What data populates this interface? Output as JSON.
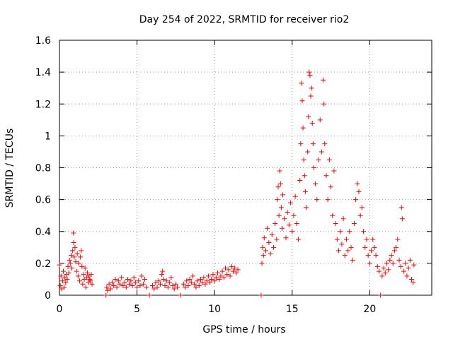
{
  "chart_data": {
    "type": "scatter",
    "title": "Day 254 of 2022, SRMTID for receiver rio2",
    "xlabel": "GPS time / hours",
    "ylabel": "SRMTID / TECUs",
    "xlim": [
      0,
      24
    ],
    "ylim": [
      0,
      1.6
    ],
    "xticks": [
      0,
      5,
      10,
      15,
      20
    ],
    "xtick_labels": [
      "0",
      "5",
      "10",
      "15",
      "20"
    ],
    "yticks": [
      0,
      0.2,
      0.4,
      0.6,
      0.8,
      1,
      1.2,
      1.4,
      1.6
    ],
    "ytick_labels": [
      "0",
      "0.2",
      "0.4",
      "0.6",
      "0.8",
      "1",
      "1.2",
      "1.4",
      "1.6"
    ],
    "grid": true,
    "marker": "+",
    "color": "#ff0000",
    "series": [
      {
        "name": "rio2",
        "points": [
          [
            0.0,
            0.19
          ],
          [
            0.05,
            0.06
          ],
          [
            0.1,
            0.12
          ],
          [
            0.15,
            0.04
          ],
          [
            0.2,
            0.09
          ],
          [
            0.25,
            0.15
          ],
          [
            0.3,
            0.05
          ],
          [
            0.35,
            0.11
          ],
          [
            0.4,
            0.08
          ],
          [
            0.45,
            0.13
          ],
          [
            0.5,
            0.1
          ],
          [
            0.55,
            0.18
          ],
          [
            0.6,
            0.14
          ],
          [
            0.65,
            0.22
          ],
          [
            0.7,
            0.2
          ],
          [
            0.75,
            0.25
          ],
          [
            0.8,
            0.17
          ],
          [
            0.85,
            0.28
          ],
          [
            0.9,
            0.39
          ],
          [
            0.92,
            0.33
          ],
          [
            0.95,
            0.24
          ],
          [
            1.0,
            0.3
          ],
          [
            1.05,
            0.21
          ],
          [
            1.1,
            0.15
          ],
          [
            1.15,
            0.26
          ],
          [
            1.2,
            0.12
          ],
          [
            1.25,
            0.2
          ],
          [
            1.3,
            0.09
          ],
          [
            1.35,
            0.24
          ],
          [
            1.4,
            0.28
          ],
          [
            1.45,
            0.18
          ],
          [
            1.5,
            0.07
          ],
          [
            1.55,
            0.13
          ],
          [
            1.6,
            0.1
          ],
          [
            1.65,
            0.17
          ],
          [
            1.7,
            0.05
          ],
          [
            1.75,
            0.11
          ],
          [
            1.8,
            0.14
          ],
          [
            1.85,
            0.08
          ],
          [
            1.9,
            0.12
          ],
          [
            1.95,
            0.1
          ],
          [
            2.0,
            0.09
          ],
          [
            2.05,
            0.13
          ],
          [
            2.1,
            0.07
          ],
          [
            3.0,
            0.0
          ],
          [
            3.05,
            0.05
          ],
          [
            3.1,
            0.03
          ],
          [
            3.2,
            0.07
          ],
          [
            3.3,
            0.04
          ],
          [
            3.4,
            0.08
          ],
          [
            3.5,
            0.06
          ],
          [
            3.6,
            0.1
          ],
          [
            3.7,
            0.05
          ],
          [
            3.8,
            0.09
          ],
          [
            3.9,
            0.07
          ],
          [
            4.0,
            0.11
          ],
          [
            4.1,
            0.06
          ],
          [
            4.2,
            0.08
          ],
          [
            4.3,
            0.05
          ],
          [
            4.4,
            0.1
          ],
          [
            4.5,
            0.07
          ],
          [
            4.6,
            0.09
          ],
          [
            4.7,
            0.06
          ],
          [
            4.8,
            0.11
          ],
          [
            4.9,
            0.08
          ],
          [
            5.0,
            0.05
          ],
          [
            5.1,
            0.09
          ],
          [
            5.2,
            0.06
          ],
          [
            5.3,
            0.12
          ],
          [
            5.4,
            0.07
          ],
          [
            5.5,
            0.1
          ],
          [
            5.6,
            0.05
          ],
          [
            5.8,
            0.0
          ],
          [
            6.0,
            0.06
          ],
          [
            6.1,
            0.04
          ],
          [
            6.2,
            0.08
          ],
          [
            6.3,
            0.05
          ],
          [
            6.4,
            0.09
          ],
          [
            6.5,
            0.07
          ],
          [
            6.6,
            0.13
          ],
          [
            6.65,
            0.15
          ],
          [
            6.7,
            0.1
          ],
          [
            6.8,
            0.06
          ],
          [
            6.9,
            0.09
          ],
          [
            7.0,
            0.05
          ],
          [
            7.1,
            0.08
          ],
          [
            7.2,
            0.11
          ],
          [
            7.3,
            0.06
          ],
          [
            7.4,
            0.04
          ],
          [
            7.5,
            0.07
          ],
          [
            7.6,
            0.05
          ],
          [
            7.8,
            0.0
          ],
          [
            8.0,
            0.07
          ],
          [
            8.1,
            0.05
          ],
          [
            8.2,
            0.09
          ],
          [
            8.3,
            0.06
          ],
          [
            8.4,
            0.1
          ],
          [
            8.5,
            0.08
          ],
          [
            8.6,
            0.12
          ],
          [
            8.7,
            0.07
          ],
          [
            8.8,
            0.05
          ],
          [
            8.9,
            0.09
          ],
          [
            9.0,
            0.06
          ],
          [
            9.1,
            0.1
          ],
          [
            9.2,
            0.08
          ],
          [
            9.3,
            0.11
          ],
          [
            9.4,
            0.07
          ],
          [
            9.5,
            0.09
          ],
          [
            9.6,
            0.12
          ],
          [
            9.7,
            0.08
          ],
          [
            9.8,
            0.1
          ],
          [
            9.9,
            0.13
          ],
          [
            10.0,
            0.09
          ],
          [
            10.1,
            0.11
          ],
          [
            10.2,
            0.14
          ],
          [
            10.3,
            0.1
          ],
          [
            10.4,
            0.12
          ],
          [
            10.5,
            0.15
          ],
          [
            10.6,
            0.11
          ],
          [
            10.7,
            0.17
          ],
          [
            10.8,
            0.13
          ],
          [
            10.9,
            0.16
          ],
          [
            11.0,
            0.12
          ],
          [
            11.1,
            0.18
          ],
          [
            11.2,
            0.15
          ],
          [
            11.3,
            0.17
          ],
          [
            11.4,
            0.14
          ],
          [
            11.5,
            0.16
          ],
          [
            13.0,
            0.0
          ],
          [
            13.05,
            0.2
          ],
          [
            13.1,
            0.3
          ],
          [
            13.15,
            0.25
          ],
          [
            13.2,
            0.36
          ],
          [
            13.3,
            0.28
          ],
          [
            13.4,
            0.42
          ],
          [
            13.5,
            0.33
          ],
          [
            13.6,
            0.26
          ],
          [
            13.7,
            0.38
          ],
          [
            13.8,
            0.3
          ],
          [
            13.9,
            0.45
          ],
          [
            14.0,
            0.35
          ],
          [
            14.05,
            0.6
          ],
          [
            14.1,
            0.68
          ],
          [
            14.15,
            0.5
          ],
          [
            14.2,
            0.78
          ],
          [
            14.25,
            0.7
          ],
          [
            14.3,
            0.55
          ],
          [
            14.35,
            0.42
          ],
          [
            14.4,
            0.63
          ],
          [
            14.5,
            0.48
          ],
          [
            14.6,
            0.36
          ],
          [
            14.7,
            0.52
          ],
          [
            14.8,
            0.44
          ],
          [
            14.9,
            0.58
          ],
          [
            15.0,
            0.4
          ],
          [
            15.1,
            0.5
          ],
          [
            15.2,
            0.62
          ],
          [
            15.3,
            0.45
          ],
          [
            15.4,
            0.35
          ],
          [
            15.5,
            0.72
          ],
          [
            15.55,
            0.95
          ],
          [
            15.6,
            1.33
          ],
          [
            15.65,
            1.22
          ],
          [
            15.7,
            1.05
          ],
          [
            15.75,
            0.85
          ],
          [
            15.8,
            0.75
          ],
          [
            15.85,
            0.65
          ],
          [
            15.9,
            0.55
          ],
          [
            16.0,
            0.9
          ],
          [
            16.05,
            1.12
          ],
          [
            16.1,
            1.4
          ],
          [
            16.15,
            1.38
          ],
          [
            16.2,
            1.25
          ],
          [
            16.25,
            1.3
          ],
          [
            16.3,
            1.08
          ],
          [
            16.35,
            0.95
          ],
          [
            16.4,
            0.8
          ],
          [
            16.5,
            0.7
          ],
          [
            16.6,
            0.6
          ],
          [
            16.7,
            0.85
          ],
          [
            16.8,
            1.1
          ],
          [
            16.9,
            0.9
          ],
          [
            17.0,
            1.35
          ],
          [
            17.05,
            1.2
          ],
          [
            17.1,
            0.95
          ],
          [
            17.2,
            0.75
          ],
          [
            17.3,
            0.6
          ],
          [
            17.4,
            0.85
          ],
          [
            17.5,
            0.68
          ],
          [
            17.6,
            0.5
          ],
          [
            17.7,
            0.78
          ],
          [
            17.8,
            0.45
          ],
          [
            17.9,
            0.35
          ],
          [
            18.0,
            0.28
          ],
          [
            18.1,
            0.4
          ],
          [
            18.2,
            0.32
          ],
          [
            18.3,
            0.48
          ],
          [
            18.4,
            0.25
          ],
          [
            18.5,
            0.35
          ],
          [
            18.6,
            0.28
          ],
          [
            18.7,
            0.4
          ],
          [
            18.8,
            0.3
          ],
          [
            18.9,
            0.22
          ],
          [
            19.0,
            0.45
          ],
          [
            19.1,
            0.6
          ],
          [
            19.2,
            0.7
          ],
          [
            19.3,
            0.65
          ],
          [
            19.4,
            0.5
          ],
          [
            19.5,
            0.55
          ],
          [
            19.6,
            0.4
          ],
          [
            19.7,
            0.3
          ],
          [
            19.8,
            0.35
          ],
          [
            19.9,
            0.25
          ],
          [
            20.0,
            0.2
          ],
          [
            20.1,
            0.28
          ],
          [
            20.2,
            0.35
          ],
          [
            20.3,
            0.3
          ],
          [
            20.4,
            0.25
          ],
          [
            20.5,
            0.18
          ],
          [
            20.6,
            0.15
          ],
          [
            20.7,
            0.0
          ],
          [
            20.8,
            0.12
          ],
          [
            20.9,
            0.17
          ],
          [
            21.0,
            0.14
          ],
          [
            21.1,
            0.2
          ],
          [
            21.2,
            0.16
          ],
          [
            21.3,
            0.22
          ],
          [
            21.4,
            0.25
          ],
          [
            21.5,
            0.2
          ],
          [
            21.6,
            0.28
          ],
          [
            21.7,
            0.3
          ],
          [
            21.8,
            0.35
          ],
          [
            21.9,
            0.22
          ],
          [
            22.0,
            0.18
          ],
          [
            22.05,
            0.55
          ],
          [
            22.1,
            0.48
          ],
          [
            22.2,
            0.15
          ],
          [
            22.3,
            0.2
          ],
          [
            22.4,
            0.12
          ],
          [
            22.5,
            0.17
          ],
          [
            22.6,
            0.22
          ],
          [
            22.7,
            0.1
          ],
          [
            22.8,
            0.08
          ],
          [
            22.85,
            0.19
          ]
        ]
      }
    ]
  }
}
